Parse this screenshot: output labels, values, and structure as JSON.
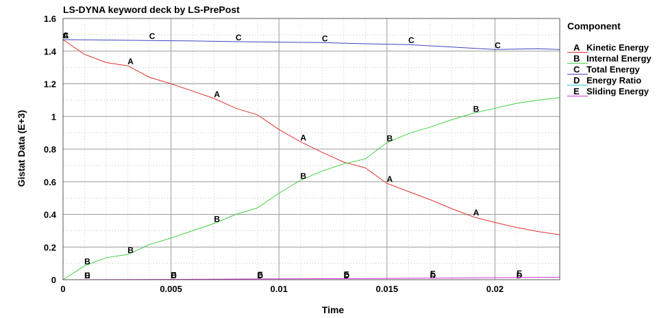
{
  "chart_data": {
    "type": "line",
    "title": "LS-DYNA keyword deck by LS-PrePost",
    "xlabel": "Time",
    "ylabel": "Gistat Data (E+3)",
    "xlim": [
      0,
      0.023
    ],
    "ylim": [
      0,
      1.6
    ],
    "x_ticks": [
      0,
      0.005,
      0.01,
      0.015,
      0.02
    ],
    "x_tick_labels": [
      "0",
      "0.005",
      "0.01",
      "0.015",
      "0.02"
    ],
    "y_ticks": [
      0,
      0.2,
      0.4,
      0.6,
      0.8,
      1,
      1.2,
      1.4,
      1.6
    ],
    "y_tick_labels": [
      "0",
      "0.2",
      "0.4",
      "0.6",
      "0.8",
      "1",
      "1.2",
      "1.4",
      "1.6"
    ],
    "grid": true,
    "legend_title": "Component",
    "legend_position": "right",
    "series": [
      {
        "letter": "A",
        "name": "Kinetic Energy",
        "color": "#e03030",
        "x": [
          0,
          0.001,
          0.002,
          0.003,
          0.004,
          0.005,
          0.006,
          0.007,
          0.008,
          0.009,
          0.01,
          0.011,
          0.012,
          0.013,
          0.014,
          0.015,
          0.016,
          0.017,
          0.018,
          0.019,
          0.02,
          0.021,
          0.022,
          0.023
        ],
        "y": [
          1.47,
          1.38,
          1.33,
          1.31,
          1.24,
          1.2,
          1.155,
          1.11,
          1.05,
          1.01,
          0.92,
          0.845,
          0.78,
          0.72,
          0.685,
          0.59,
          0.54,
          0.49,
          0.435,
          0.385,
          0.35,
          0.32,
          0.295,
          0.275
        ],
        "markers": [
          0,
          0.003,
          0.007,
          0.011,
          0.015,
          0.019
        ]
      },
      {
        "letter": "B",
        "name": "Internal Energy",
        "color": "#40d040",
        "x": [
          0,
          0.001,
          0.002,
          0.003,
          0.004,
          0.005,
          0.006,
          0.007,
          0.008,
          0.009,
          0.01,
          0.011,
          0.012,
          0.013,
          0.014,
          0.015,
          0.016,
          0.017,
          0.018,
          0.019,
          0.02,
          0.021,
          0.022,
          0.023
        ],
        "y": [
          0,
          0.085,
          0.135,
          0.155,
          0.215,
          0.255,
          0.3,
          0.345,
          0.4,
          0.44,
          0.53,
          0.61,
          0.665,
          0.71,
          0.74,
          0.84,
          0.895,
          0.935,
          0.98,
          1.02,
          1.05,
          1.08,
          1.1,
          1.115
        ],
        "markers": [
          0.001,
          0.003,
          0.007,
          0.011,
          0.015,
          0.019
        ]
      },
      {
        "letter": "C",
        "name": "Total Energy",
        "color": "#4040c0",
        "x": [
          0,
          0.002,
          0.004,
          0.006,
          0.008,
          0.01,
          0.012,
          0.014,
          0.016,
          0.018,
          0.02,
          0.022,
          0.023
        ],
        "y": [
          1.47,
          1.468,
          1.465,
          1.462,
          1.458,
          1.455,
          1.452,
          1.445,
          1.44,
          1.425,
          1.41,
          1.415,
          1.41
        ],
        "markers": [
          0,
          0.004,
          0.008,
          0.012,
          0.016,
          0.02
        ]
      },
      {
        "letter": "D",
        "name": "Energy Ratio",
        "color": "#20d0d0",
        "x": [
          0,
          0.023
        ],
        "y": [
          0,
          0
        ],
        "markers": [
          0.001,
          0.005,
          0.009,
          0.013,
          0.017,
          0.021
        ]
      },
      {
        "letter": "E",
        "name": "Sliding Energy",
        "color": "#d030d0",
        "x": [
          0,
          0.005,
          0.01,
          0.015,
          0.02,
          0.023
        ],
        "y": [
          0,
          0.002,
          0.005,
          0.008,
          0.012,
          0.015
        ],
        "markers": [
          0.001,
          0.005,
          0.009,
          0.013,
          0.017,
          0.021
        ]
      }
    ]
  }
}
